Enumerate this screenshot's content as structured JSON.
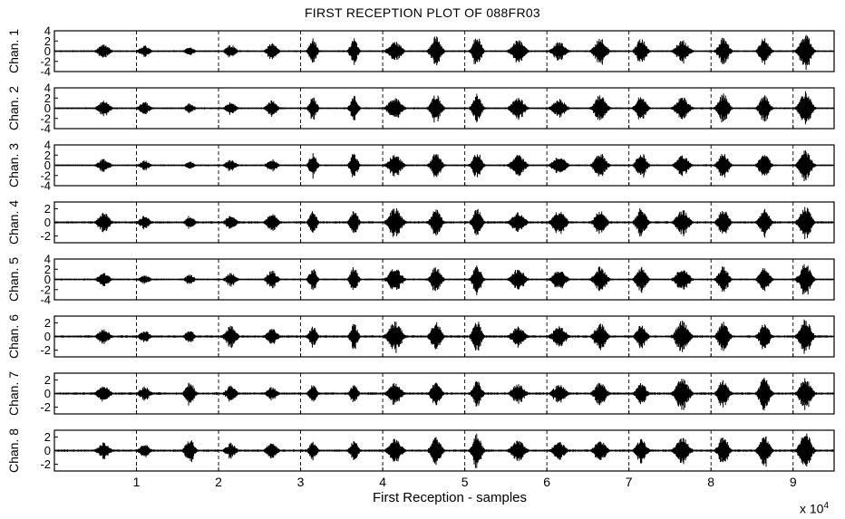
{
  "chart_data": {
    "type": "line",
    "title": "FIRST RECEPTION PLOT OF 088FR03",
    "xlabel": "First Reception  -  samples",
    "x_multiplier_label": "x 10",
    "x_multiplier_exponent": "4",
    "xlim": [
      0,
      95000
    ],
    "x_ticks": [
      10000,
      20000,
      30000,
      40000,
      50000,
      60000,
      70000,
      80000,
      90000
    ],
    "x_tick_labels": [
      "1",
      "2",
      "3",
      "4",
      "5",
      "6",
      "7",
      "8",
      "9"
    ],
    "grid": "vertical dashed",
    "series_color": "#000000",
    "bursts_x": [
      6000,
      11000,
      16500,
      21500,
      26500,
      31500,
      36500,
      41500,
      46500,
      51500,
      56500,
      61500,
      66500,
      71500,
      76500,
      81500,
      86500,
      91500
    ],
    "channels": [
      {
        "name": "Chan. 1",
        "ylim": [
          -4,
          4
        ],
        "yticks": [
          "4",
          "2",
          "0",
          "-2",
          "-4"
        ],
        "y_values": [
          4,
          2,
          0,
          -2,
          -4
        ],
        "amplitudes": [
          1.5,
          1.2,
          0.8,
          1.3,
          1.6,
          2.5,
          2.6,
          2.0,
          3.0,
          3.1,
          2.3,
          1.9,
          2.8,
          2.6,
          2.2,
          2.8,
          2.7,
          3.5
        ]
      },
      {
        "name": "Chan. 2",
        "ylim": [
          -4,
          4
        ],
        "yticks": [
          "4",
          "2",
          "0",
          "-2",
          "-4"
        ],
        "y_values": [
          4,
          2,
          0,
          -2,
          -4
        ],
        "amplitudes": [
          1.5,
          1.3,
          1.0,
          1.2,
          1.6,
          2.4,
          2.5,
          2.2,
          2.8,
          3.0,
          2.2,
          1.9,
          2.7,
          2.7,
          2.3,
          2.9,
          2.6,
          3.4
        ]
      },
      {
        "name": "Chan. 3",
        "ylim": [
          -4,
          4
        ],
        "yticks": [
          "4",
          "2",
          "0",
          "-2",
          "-4"
        ],
        "y_values": [
          4,
          2,
          0,
          -2,
          -4
        ],
        "amplitudes": [
          1.3,
          1.0,
          0.8,
          1.2,
          1.3,
          2.4,
          2.6,
          2.2,
          2.5,
          2.8,
          2.2,
          1.9,
          2.5,
          2.6,
          2.1,
          2.6,
          2.7,
          3.0
        ]
      },
      {
        "name": "Chan. 4",
        "ylim": [
          -3,
          3
        ],
        "yticks": [
          "2",
          "0",
          "-2"
        ],
        "y_values": [
          2,
          0,
          -2
        ],
        "amplitudes": [
          1.5,
          1.0,
          1.0,
          1.2,
          1.4,
          1.8,
          2.0,
          2.2,
          2.0,
          2.1,
          1.6,
          1.8,
          1.8,
          2.2,
          1.9,
          2.1,
          2.0,
          2.4
        ]
      },
      {
        "name": "Chan. 5",
        "ylim": [
          -4,
          4
        ],
        "yticks": [
          "4",
          "2",
          "0",
          "-2",
          "-4"
        ],
        "y_values": [
          4,
          2,
          0,
          -2,
          -4
        ],
        "amplitudes": [
          1.3,
          0.9,
          1.0,
          1.3,
          1.8,
          2.3,
          2.6,
          2.4,
          2.6,
          3.0,
          2.2,
          2.1,
          2.6,
          2.5,
          2.3,
          2.7,
          2.5,
          3.2
        ]
      },
      {
        "name": "Chan. 6",
        "ylim": [
          -3,
          3
        ],
        "yticks": [
          "2",
          "0",
          "-2"
        ],
        "y_values": [
          2,
          0,
          -2
        ],
        "amplitudes": [
          1.2,
          0.9,
          1.0,
          1.8,
          1.3,
          1.6,
          2.0,
          2.3,
          2.2,
          2.4,
          1.5,
          1.6,
          2.0,
          1.8,
          2.4,
          2.3,
          2.0,
          2.6
        ]
      },
      {
        "name": "Chan. 7",
        "ylim": [
          -3,
          3
        ],
        "yticks": [
          "2",
          "0",
          "-2"
        ],
        "y_values": [
          2,
          0,
          -2
        ],
        "amplitudes": [
          1.3,
          1.1,
          1.8,
          1.2,
          1.0,
          1.4,
          1.5,
          1.6,
          1.7,
          2.0,
          1.5,
          1.4,
          1.8,
          1.6,
          2.4,
          2.2,
          2.5,
          2.4
        ]
      },
      {
        "name": "Chan. 8",
        "ylim": [
          -3,
          3
        ],
        "yticks": [
          "2",
          "0",
          "-2"
        ],
        "y_values": [
          2,
          0,
          -2
        ],
        "amplitudes": [
          1.2,
          1.0,
          1.9,
          1.2,
          1.3,
          1.4,
          1.6,
          1.8,
          2.0,
          2.6,
          1.6,
          1.3,
          1.6,
          1.9,
          2.0,
          2.2,
          2.4,
          2.8
        ]
      }
    ]
  }
}
